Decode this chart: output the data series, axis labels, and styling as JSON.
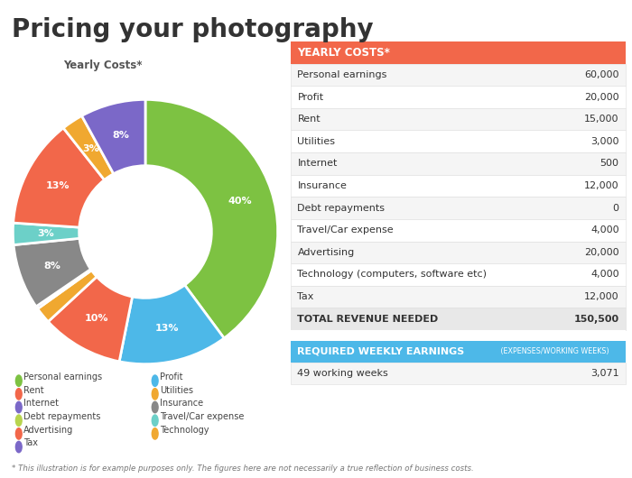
{
  "title": "Pricing your photography",
  "pie_title": "Yearly Costs*",
  "pie_values": [
    60000,
    20000,
    15000,
    3000,
    500,
    12000,
    4000,
    20000,
    4000,
    12000
  ],
  "pie_colors": [
    "#7dc242",
    "#4db8e8",
    "#f2674a",
    "#f0a830",
    "#7b68c8",
    "#888888",
    "#6cd0c8",
    "#f2674a",
    "#f0a830",
    "#7b68c8"
  ],
  "pie_labels_order": [
    "Personal earnings",
    "Profit",
    "Rent",
    "Utilities",
    "Internet",
    "Insurance",
    "Travel/Car expense",
    "Advertising",
    "Technology",
    "Tax"
  ],
  "table_header": "YEARLY COSTS*",
  "table_header_color": "#f2674a",
  "table_rows": [
    [
      "Personal earnings",
      "60,000"
    ],
    [
      "Profit",
      "20,000"
    ],
    [
      "Rent",
      "15,000"
    ],
    [
      "Utilities",
      "3,000"
    ],
    [
      "Internet",
      "500"
    ],
    [
      "Insurance",
      "12,000"
    ],
    [
      "Debt repayments",
      "0"
    ],
    [
      "Travel/Car expense",
      "4,000"
    ],
    [
      "Advertising",
      "20,000"
    ],
    [
      "Technology (computers, software etc)",
      "4,000"
    ],
    [
      "Tax",
      "12,000"
    ],
    [
      "TOTAL REVENUE NEEDED",
      "150,500"
    ]
  ],
  "weekly_header": "REQUIRED WEEKLY EARNINGS",
  "weekly_subheader": " (EXPENSES/WORKING WEEKS)",
  "weekly_header_color": "#4db8e8",
  "weekly_row": [
    "49 working weeks",
    "3,071"
  ],
  "footnote": "* This illustration is for example purposes only. The figures here are not necessarily a true reflection of business costs.",
  "legend_col1": [
    [
      "Personal earnings",
      "#7dc242"
    ],
    [
      "Rent",
      "#f2674a"
    ],
    [
      "Internet",
      "#7b68c8"
    ],
    [
      "Debt repayments",
      "#b8d44e"
    ],
    [
      "Advertising",
      "#f2674a"
    ],
    [
      "Tax",
      "#7b68c8"
    ]
  ],
  "legend_col2": [
    [
      "Profit",
      "#4db8e8"
    ],
    [
      "Utilities",
      "#f0a830"
    ],
    [
      "Insurance",
      "#888888"
    ],
    [
      "Travel/Car expense",
      "#6cd0c8"
    ],
    [
      "Technology",
      "#f0a830"
    ]
  ],
  "bg_color": "#ffffff"
}
